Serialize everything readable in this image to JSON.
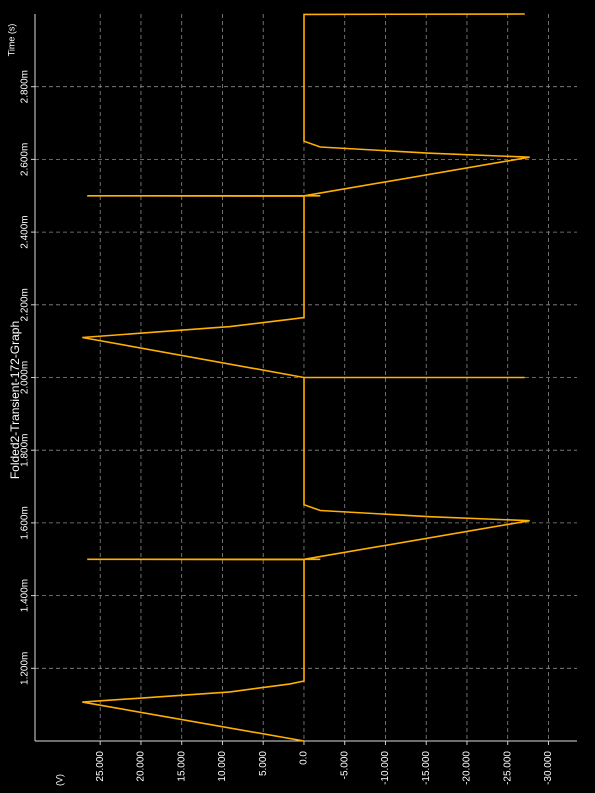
{
  "chart_data": {
    "type": "line",
    "title": "Folded2-Transient-172-Graph",
    "x_label": "Time (s)",
    "y_label": "(V)",
    "xlim": [
      0.001,
      0.003
    ],
    "xticks": [
      {
        "value": 0.0012,
        "label": "1.200m"
      },
      {
        "value": 0.0014,
        "label": "1.400m"
      },
      {
        "value": 0.0016,
        "label": "1.600m"
      },
      {
        "value": 0.0018,
        "label": "1.800m"
      },
      {
        "value": 0.002,
        "label": "2.000m"
      },
      {
        "value": 0.0022,
        "label": "2.200m"
      },
      {
        "value": 0.0024,
        "label": "2.400m"
      },
      {
        "value": 0.0026,
        "label": "2.600m"
      },
      {
        "value": 0.0028,
        "label": "2.800m"
      }
    ],
    "ylim": [
      33,
      -33.5
    ],
    "yticks": [
      {
        "value": 25,
        "label": "25.000"
      },
      {
        "value": 20,
        "label": "20.000"
      },
      {
        "value": 15,
        "label": "15.000"
      },
      {
        "value": 10,
        "label": "10.000"
      },
      {
        "value": 5,
        "label": "5.000"
      },
      {
        "value": 0,
        "label": "0.0"
      },
      {
        "value": -5,
        "label": "-5.000"
      },
      {
        "value": -10,
        "label": "-10.000"
      },
      {
        "value": -15,
        "label": "-15.000"
      },
      {
        "value": -20,
        "label": "-20.000"
      },
      {
        "value": -25,
        "label": "-25.000"
      },
      {
        "value": -30,
        "label": "-30.000"
      }
    ],
    "grid": true,
    "x": [
      0.001,
      0.001107,
      0.001135,
      0.001157,
      0.001165,
      0.001499,
      0.0015,
      0.0015,
      0.0015,
      0.001606,
      0.001617,
      0.001634,
      0.00165,
      0.002,
      0.002,
      0.002,
      0.00211,
      0.00214,
      0.00216,
      0.002165,
      0.002499,
      0.0025,
      0.0025,
      0.0025,
      0.002606,
      0.002617,
      0.002634,
      0.00265,
      0.002999,
      0.003
    ],
    "series": [
      {
        "color": "#ffb000",
        "values": [
          0,
          27.2,
          9.07,
          1.7,
          0,
          0,
          26.6,
          -2,
          0,
          -27.7,
          -15.4,
          -2,
          0,
          0,
          -27.1,
          0,
          27.2,
          9.07,
          1.7,
          0,
          0,
          26.6,
          -2,
          0,
          -27.7,
          -15.4,
          -2,
          0,
          0,
          -27.1
        ]
      }
    ]
  }
}
